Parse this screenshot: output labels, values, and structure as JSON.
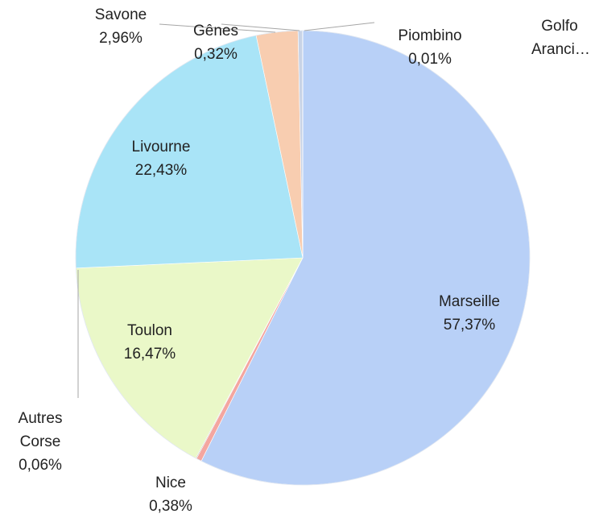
{
  "chart_data": {
    "type": "pie",
    "categories": [
      "Marseille",
      "Nice",
      "Autres Corse",
      "Toulon",
      "Livourne",
      "Savone",
      "Gênes",
      "Piombino",
      "Golfo Aranci…"
    ],
    "values": [
      57.37,
      0.38,
      0.06,
      16.47,
      22.43,
      2.96,
      0.32,
      0.01,
      0
    ],
    "value_labels": [
      "57,37%",
      "0,38%",
      "0,06%",
      "16,47%",
      "22,43%",
      "2,96%",
      "0,32%",
      "0,01%",
      null
    ],
    "colors": [
      "#b8d0f7",
      "#f4a6a0",
      "#a6a6a6",
      "#eaf8c8",
      "#a9e4f7",
      "#f8cdb0",
      "#c8d3e6",
      "#8eaad6",
      "#7f7f7f"
    ]
  }
}
